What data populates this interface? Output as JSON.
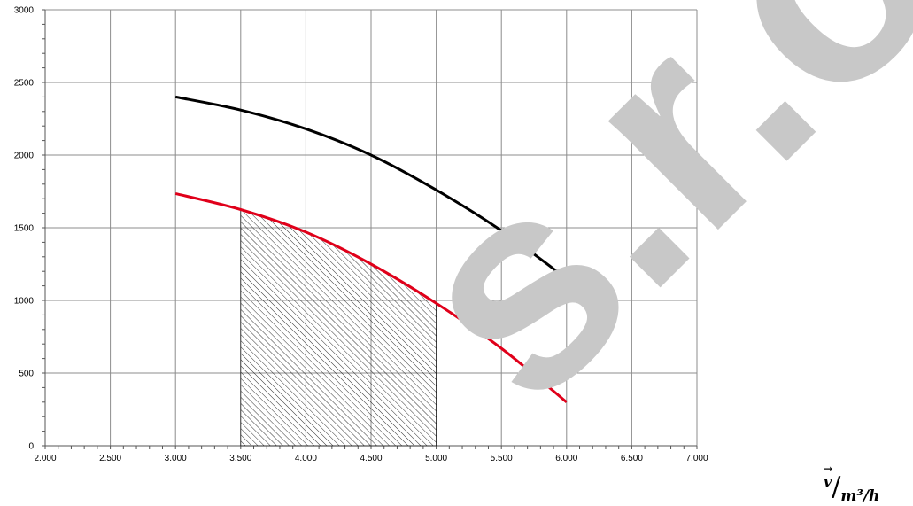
{
  "chart_data": {
    "type": "line",
    "x_ticks": [
      "2.000",
      "2.500",
      "3.000",
      "3.500",
      "4.000",
      "4.500",
      "5.000",
      "5.500",
      "6.000",
      "6.500",
      "7.000"
    ],
    "y_ticks": [
      "0",
      "500",
      "1000",
      "1500",
      "2000",
      "2500",
      "3000"
    ],
    "xlim": [
      2000,
      7000
    ],
    "ylim": [
      0,
      3000
    ],
    "grid": true,
    "series": [
      {
        "color": "#000000",
        "x": [
          3000,
          3500,
          4000,
          4500,
          5000,
          5500,
          6000
        ],
        "y": [
          2400,
          2310,
          2180,
          2000,
          1760,
          1480,
          1150
        ]
      },
      {
        "color": "#e0001a",
        "x": [
          3000,
          3500,
          4000,
          4500,
          5000,
          5500,
          6000
        ],
        "y": [
          1735,
          1625,
          1470,
          1250,
          980,
          670,
          300
        ]
      }
    ],
    "shaded_region": {
      "x_range": [
        3500,
        5000
      ],
      "pattern": "diagonal-hatch",
      "upper_bound_series": 1
    },
    "x_unit_label": {
      "symbol": "V",
      "arrow": "→",
      "slash": "/",
      "unit": "m³/h"
    }
  },
  "watermark": {
    "text": "s.r.o.",
    "color": "#c8c8c8"
  }
}
